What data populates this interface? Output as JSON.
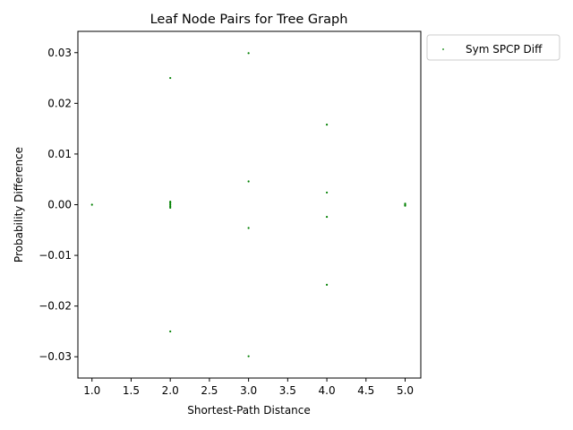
{
  "chart_data": {
    "type": "scatter",
    "title": "Leaf Node Pairs for Tree Graph",
    "xlabel": "Shortest-Path Distance",
    "ylabel": "Probability Difference",
    "xlim": [
      0.82,
      5.2
    ],
    "ylim": [
      -0.0342,
      0.0342
    ],
    "xticks": [
      1.0,
      1.5,
      2.0,
      2.5,
      3.0,
      3.5,
      4.0,
      4.5,
      5.0
    ],
    "xtick_labels": [
      "1.0",
      "1.5",
      "2.0",
      "2.5",
      "3.0",
      "3.5",
      "4.0",
      "4.5",
      "5.0"
    ],
    "yticks": [
      0.03,
      0.02,
      0.01,
      0.0,
      -0.01,
      -0.02,
      -0.03
    ],
    "ytick_labels": [
      "0.03",
      "0.02",
      "0.01",
      "0.00",
      "−0.01",
      "−0.02",
      "−0.03"
    ],
    "grid": false,
    "legend_position": "outside-top-right",
    "series": [
      {
        "name": "Sym SPCP Diff",
        "color": "#008000",
        "marker": "point",
        "points": [
          [
            1.0,
            0.0
          ],
          [
            2.0,
            0.025
          ],
          [
            2.0,
            0.0006
          ],
          [
            2.0,
            0.0003
          ],
          [
            2.0,
            0.0
          ],
          [
            2.0,
            -0.0003
          ],
          [
            2.0,
            -0.0006
          ],
          [
            2.0,
            -0.025
          ],
          [
            3.0,
            0.0299
          ],
          [
            3.0,
            0.0046
          ],
          [
            3.0,
            -0.0046
          ],
          [
            3.0,
            -0.0299
          ],
          [
            4.0,
            0.0158
          ],
          [
            4.0,
            0.0024
          ],
          [
            4.0,
            -0.0024
          ],
          [
            4.0,
            -0.0158
          ],
          [
            5.0,
            0.0002
          ],
          [
            5.0,
            0.0
          ],
          [
            5.0,
            -0.0002
          ]
        ]
      }
    ]
  }
}
